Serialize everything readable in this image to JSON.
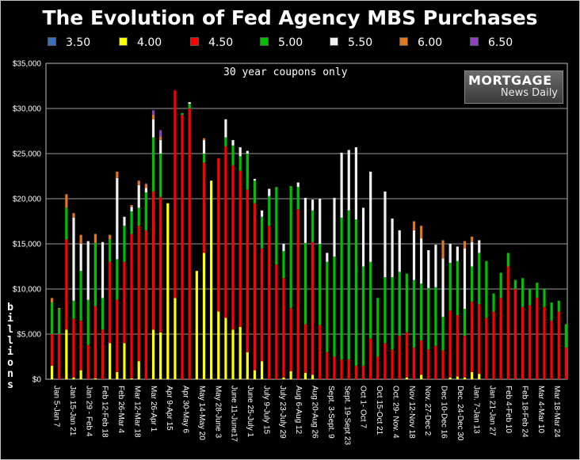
{
  "title": "The Evolution of Fed Agency MBS Purchases",
  "annotation": "30 year coupons only",
  "logo": {
    "line1": "MORTGAGE",
    "line2": "News Daily"
  },
  "ylabel_letters": [
    "b",
    "i",
    "l",
    "l",
    "i",
    "o",
    "n",
    "s"
  ],
  "legend": [
    {
      "label": "3.50",
      "color": "#3a6fbf"
    },
    {
      "label": "4.00",
      "color": "#ffff00"
    },
    {
      "label": "4.50",
      "color": "#ff0000"
    },
    {
      "label": "5.00",
      "color": "#00c000"
    },
    {
      "label": "5.50",
      "color": "#f0f0f0"
    },
    {
      "label": "6.00",
      "color": "#e07820"
    },
    {
      "label": "6.50",
      "color": "#9040c0"
    }
  ],
  "chart_data": {
    "type": "bar",
    "stacked": true,
    "ylim": [
      0,
      35000
    ],
    "yticks": [
      "$0",
      "$5,000",
      "$10,000",
      "$15,000",
      "$20,000",
      "$25,000",
      "$30,000",
      "$35,000"
    ],
    "grid": true,
    "xtick_labels": [
      "Jan 5-Jan 7",
      "Jan 15-Jan 21",
      "Jan 29 - Feb 4",
      "Feb 12-Feb 18",
      "Feb 26-Mar 4",
      "Mar 12-Mar 18",
      "Mar 26-Apr 1",
      "Apr 9-Apr 15",
      "Apr 30-May 6",
      "May 14-May 20",
      "May 28-June 3",
      "June 11-June17",
      "June 25-July 1",
      "July 9-July 15",
      "July 23-July 29",
      "Aug 6-Aug 12",
      "Aug 20-Aug 26",
      "Sept. 3-Sept. 9",
      "Sept. 19-Sept 23",
      "Oct 1- Oct 7",
      "Oct 15-Oct 21",
      "Oct. 29- Nov. 4",
      "Nov 12-Nov 18",
      "Nov. 27-Dec 2",
      "Dec 10-Dec 16",
      "Dec. 24-Dec 30",
      "Jan. 7-Jan 13",
      "Jan 21-Jan 27",
      "Feb 4-Feb 10",
      "Feb 18-Feb 24",
      "Mar 4-Mar 10",
      "Mar 18-Mar 24"
    ],
    "series_names": [
      "3.50",
      "4.00",
      "4.50",
      "5.00",
      "5.50",
      "6.00",
      "6.50"
    ],
    "stacks": [
      [
        0,
        1500,
        3500,
        3500,
        0,
        500,
        0
      ],
      [
        0,
        0,
        5000,
        2800,
        0,
        100,
        0
      ],
      [
        0,
        5500,
        10000,
        3500,
        0,
        1500,
        0
      ],
      [
        0,
        200,
        6500,
        2000,
        9200,
        500,
        0
      ],
      [
        0,
        1000,
        5500,
        5500,
        3000,
        1000,
        0
      ],
      [
        0,
        0,
        3800,
        5000,
        6500,
        0,
        0
      ],
      [
        0,
        100,
        8000,
        7000,
        0,
        1000,
        0
      ],
      [
        0,
        0,
        5500,
        3500,
        6200,
        0,
        0
      ],
      [
        0,
        4000,
        9000,
        2500,
        0,
        500,
        0
      ],
      [
        0,
        800,
        8000,
        4500,
        9000,
        700,
        0
      ],
      [
        0,
        4000,
        9000,
        4000,
        1000,
        0,
        0
      ],
      [
        0,
        100,
        16000,
        2500,
        500,
        200,
        0
      ],
      [
        0,
        2000,
        15000,
        2000,
        2500,
        500,
        0
      ],
      [
        0,
        0,
        16500,
        4200,
        500,
        400,
        100
      ],
      [
        0,
        5500,
        15300,
        6000,
        2000,
        500,
        500
      ],
      [
        0,
        5200,
        15000,
        4800,
        1500,
        400,
        700
      ],
      [
        0,
        19500,
        0,
        0,
        0,
        0,
        0
      ],
      [
        0,
        9000,
        23000,
        0,
        0,
        0,
        0
      ],
      [
        0,
        0,
        29300,
        200,
        0,
        0,
        0
      ],
      [
        0,
        0,
        30000,
        500,
        200,
        0,
        0
      ],
      [
        0,
        12000,
        0,
        0,
        0,
        0,
        0
      ],
      [
        0,
        14000,
        10000,
        1000,
        1500,
        200,
        0
      ],
      [
        0,
        22000,
        0,
        0,
        0,
        0,
        0
      ],
      [
        0,
        7500,
        17000,
        0,
        0,
        0,
        0
      ],
      [
        0,
        6800,
        19000,
        1000,
        2000,
        0,
        0
      ],
      [
        0,
        5500,
        18200,
        2200,
        600,
        0,
        0
      ],
      [
        0,
        5800,
        17300,
        1600,
        1000,
        0,
        0
      ],
      [
        0,
        3000,
        18000,
        4000,
        300,
        0,
        0
      ],
      [
        0,
        1000,
        18500,
        2500,
        200,
        0,
        0
      ],
      [
        0,
        2000,
        12500,
        3500,
        700,
        0,
        0
      ],
      [
        0,
        0,
        17000,
        3300,
        800,
        0,
        0
      ],
      [
        0,
        0,
        12700,
        8600,
        0,
        0,
        0
      ],
      [
        0,
        200,
        11000,
        3000,
        800,
        0,
        0
      ],
      [
        0,
        900,
        7000,
        13500,
        0,
        0,
        0
      ],
      [
        0,
        0,
        18800,
        2500,
        500,
        0,
        0
      ],
      [
        0,
        700,
        5400,
        9000,
        5000,
        0,
        0
      ],
      [
        0,
        500,
        14700,
        3500,
        1200,
        0,
        0
      ],
      [
        0,
        0,
        6000,
        9000,
        5000,
        0,
        0
      ],
      [
        0,
        0,
        3000,
        10000,
        1000,
        0,
        0
      ],
      [
        0,
        0,
        2500,
        11100,
        6500,
        0,
        0
      ],
      [
        0,
        0,
        2200,
        15700,
        7200,
        0,
        0
      ],
      [
        0,
        0,
        2200,
        16500,
        6700,
        0,
        0
      ],
      [
        0,
        0,
        1500,
        16200,
        8000,
        0,
        0
      ],
      [
        0,
        0,
        1500,
        11000,
        6500,
        0,
        0
      ],
      [
        0,
        0,
        4500,
        8500,
        10000,
        0,
        0
      ],
      [
        0,
        0,
        2500,
        6500,
        0,
        0,
        0
      ],
      [
        0,
        0,
        4000,
        7300,
        9500,
        0,
        0
      ],
      [
        0,
        0,
        3300,
        8000,
        6500,
        0,
        0
      ],
      [
        0,
        0,
        4800,
        7100,
        4600,
        0,
        0
      ],
      [
        0,
        200,
        5000,
        6500,
        0,
        0,
        0
      ],
      [
        0,
        0,
        3500,
        7500,
        5500,
        1000,
        0
      ],
      [
        0,
        500,
        3800,
        6300,
        5000,
        1400,
        0
      ],
      [
        0,
        0,
        3300,
        6800,
        4200,
        0,
        0
      ],
      [
        0,
        0,
        3700,
        6500,
        4700,
        0,
        0
      ],
      [
        0,
        0,
        3200,
        3700,
        6500,
        2000,
        0
      ],
      [
        0,
        200,
        7400,
        5300,
        2100,
        0,
        0
      ],
      [
        0,
        300,
        6800,
        6000,
        1600,
        0,
        0
      ],
      [
        0,
        200,
        4600,
        3000,
        6700,
        800,
        0
      ],
      [
        0,
        800,
        7800,
        3900,
        2700,
        600,
        0
      ],
      [
        0,
        600,
        7700,
        5700,
        1400,
        0,
        0
      ],
      [
        0,
        0,
        6800,
        6300,
        0,
        0,
        0
      ],
      [
        0,
        0,
        7500,
        2000,
        0,
        0,
        0
      ],
      [
        0,
        0,
        9000,
        2800,
        0,
        0,
        0
      ],
      [
        0,
        0,
        12500,
        1500,
        0,
        0,
        0
      ],
      [
        0,
        0,
        10000,
        1000,
        0,
        0,
        0
      ],
      [
        0,
        0,
        8000,
        3200,
        0,
        0,
        0
      ],
      [
        0,
        0,
        8200,
        1800,
        0,
        0,
        0
      ],
      [
        0,
        0,
        9000,
        1700,
        0,
        0,
        0
      ],
      [
        0,
        0,
        8000,
        2000,
        0,
        0,
        0
      ],
      [
        0,
        0,
        6500,
        2000,
        0,
        0,
        0
      ],
      [
        0,
        0,
        7500,
        1200,
        0,
        0,
        0
      ],
      [
        0,
        0,
        3500,
        2600,
        0,
        0,
        0
      ]
    ]
  }
}
